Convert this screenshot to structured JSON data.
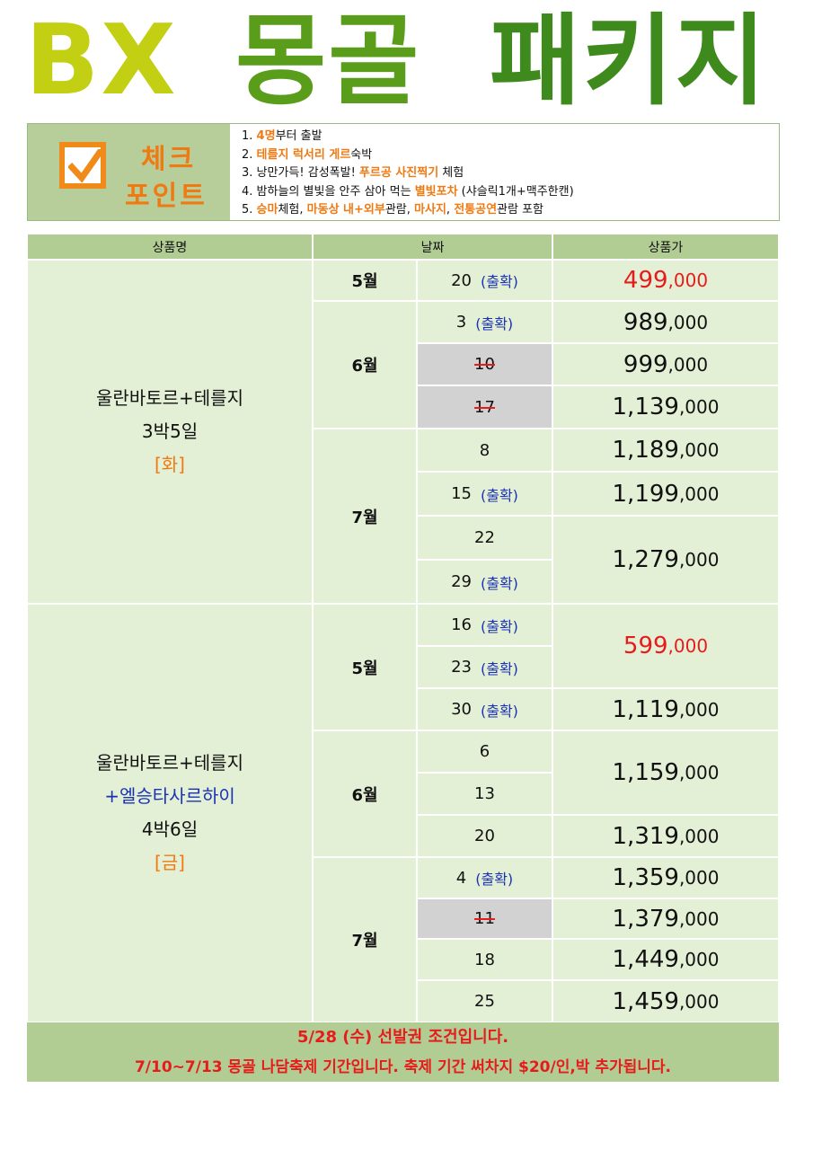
{
  "title": {
    "bx": "BX",
    "mongol": "몽골",
    "package": "패키지"
  },
  "check": {
    "word1": "체크",
    "word2": "포인트",
    "items": [
      {
        "n": "1. ",
        "a": "4명",
        "b": "부터 출발"
      },
      {
        "n": "2. ",
        "a": "테를지 럭서리 게르",
        "b": "숙박"
      },
      {
        "n": "3. ",
        "p": "낭만가득! 감성폭발! ",
        "a": "푸르공 사진찍기",
        "b": " 체험"
      },
      {
        "n": "4. ",
        "p": "밤하늘의 별빛을 안주 삼아 먹는 ",
        "a": "별빛포차",
        "b": " (샤슬릭1개+맥주한캔)"
      },
      {
        "n": "5. ",
        "a1": "승마",
        "b1": "체험, ",
        "a2": "마동상 내+외부",
        "b2": "관람, ",
        "a3": "마사지",
        "b3": ", ",
        "a4": "전통공연",
        "b4": "관람 포함"
      }
    ]
  },
  "table": {
    "headers": [
      "상품명",
      "날짜",
      "상품가"
    ],
    "pkg1": {
      "line1": "울란바토르+테를지",
      "line2": "3박5일",
      "line3": "[화]"
    },
    "pkg2": {
      "line1": "울란바토르+테를지",
      "line2": "+엘승타사르하이",
      "line3": "4박6일",
      "line4": "[금]"
    },
    "tag": "(출확)",
    "months": {
      "may": "5월",
      "jun": "6월",
      "jul": "7월"
    },
    "dates1": [
      "20",
      "3",
      "10",
      "17",
      "8",
      "15",
      "22",
      "29"
    ],
    "prices1": [
      {
        "big": "499",
        "small": ",000"
      },
      {
        "big": "989",
        "small": ",000"
      },
      {
        "big": "999",
        "small": ",000"
      },
      {
        "big": "1,139",
        "small": ",000"
      },
      {
        "big": "1,189",
        "small": ",000"
      },
      {
        "big": "1,199",
        "small": ",000"
      },
      {
        "big": "1,279",
        "small": ",000"
      }
    ],
    "dates2": [
      "16",
      "23",
      "30",
      "6",
      "13",
      "20",
      "4",
      "11",
      "18",
      "25"
    ],
    "prices2": [
      {
        "big": "599",
        "small": ",000"
      },
      {
        "big": "1,119",
        "small": ",000"
      },
      {
        "big": "1,159",
        "small": ",000"
      },
      {
        "big": "1,319",
        "small": ",000"
      },
      {
        "big": "1,359",
        "small": ",000"
      },
      {
        "big": "1,379",
        "small": ",000"
      },
      {
        "big": "1,449",
        "small": ",000"
      },
      {
        "big": "1,459",
        "small": ",000"
      }
    ]
  },
  "footer": {
    "line1": "5/28 (수) 선발권 조건입니다.",
    "line2": "7/10~7/13 몽골 나담축제 기간입니다. 축제 기간 써차지 $20/인,박 추가됩니다."
  },
  "colors": {
    "header_green": "#b2cd94",
    "cell_green": "#e4f0d6",
    "orange": "#f07a12",
    "red": "#e61c1c",
    "blue": "#1a32b4"
  }
}
